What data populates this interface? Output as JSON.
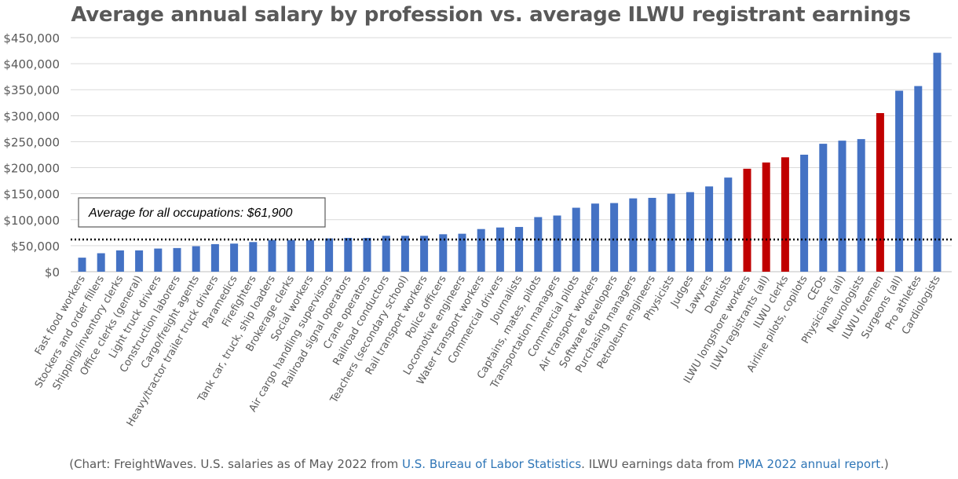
{
  "chart_data": {
    "type": "bar",
    "title": "Average annual salary by profession vs. average ILWU registrant earnings",
    "xlabel": "",
    "ylabel": "",
    "ylim": [
      0,
      450000
    ],
    "yticks": [
      0,
      50000,
      100000,
      150000,
      200000,
      250000,
      300000,
      350000,
      400000,
      450000
    ],
    "ytick_labels": [
      "$0",
      "$50,000",
      "$100,000",
      "$150,000",
      "$200,000",
      "$250,000",
      "$300,000",
      "$350,000",
      "$400,000",
      "$450,000"
    ],
    "grid": true,
    "categories": [
      "Fast food workers",
      "Stockers and order fillers",
      "Shipping/inventory clerks",
      "Office clerks (general)",
      "Light truck drivers",
      "Construction laborers",
      "Cargo/freight agents",
      "Heavy/tractor trailer truck drivers",
      "Paramedics",
      "Firefighters",
      "Tank car, truck, ship loaders",
      "Brokerage clerks",
      "Social workers",
      "Air cargo handling supervisors",
      "Railroad signal operators",
      "Crane operators",
      "Railroad conductors",
      "Teachers (secondary school)",
      "Rail transport workers",
      "Police officers",
      "Locomotive engineers",
      "Water transport workers",
      "Commercial drivers",
      "Journalists",
      "Captains, mates, pilots",
      "Transportation managers",
      "Commercial pilots",
      "Air transport workers",
      "Software developers",
      "Purchasing managers",
      "Petroleum engineers",
      "Physicists",
      "Judges",
      "Lawyers",
      "Dentists",
      "ILWU longshore workers",
      "ILWU registrants (all)",
      "ILWU clerks",
      "Airline pilots, copilots",
      "CEOs",
      "Physicians (all)",
      "Neurologists",
      "ILWU foremen",
      "Surgeons (all)",
      "Pro athletes",
      "Cardiologists"
    ],
    "values": [
      27000,
      35500,
      41000,
      41000,
      44500,
      45500,
      49000,
      53000,
      54000,
      57000,
      61000,
      61000,
      61000,
      64000,
      65000,
      65000,
      69000,
      69000,
      69000,
      72000,
      73000,
      82000,
      85000,
      86000,
      105000,
      108000,
      123000,
      131000,
      132000,
      141000,
      142000,
      150000,
      153000,
      164000,
      181000,
      198000,
      210000,
      220000,
      225000,
      246000,
      252000,
      255000,
      305000,
      348000,
      357000,
      421000
    ],
    "highlight_categories": [
      "ILWU longshore workers",
      "ILWU registrants (all)",
      "ILWU clerks",
      "ILWU foremen"
    ],
    "colors": {
      "default_bar": "#4472c4",
      "highlight_bar": "#c00000",
      "grid": "#d9d9d9",
      "text": "#595959"
    },
    "reference_line": {
      "value": 61900,
      "style": "dotted",
      "label": "Average for all occupations: $61,900"
    }
  },
  "caption": {
    "prefix": "(Chart: FreightWaves. U.S. salaries as of May 2022 from ",
    "link1": "U.S. Bureau of Labor Statistics",
    "middle": ". ILWU earnings data from ",
    "link2": "PMA 2022 annual report",
    "suffix": ".)"
  }
}
